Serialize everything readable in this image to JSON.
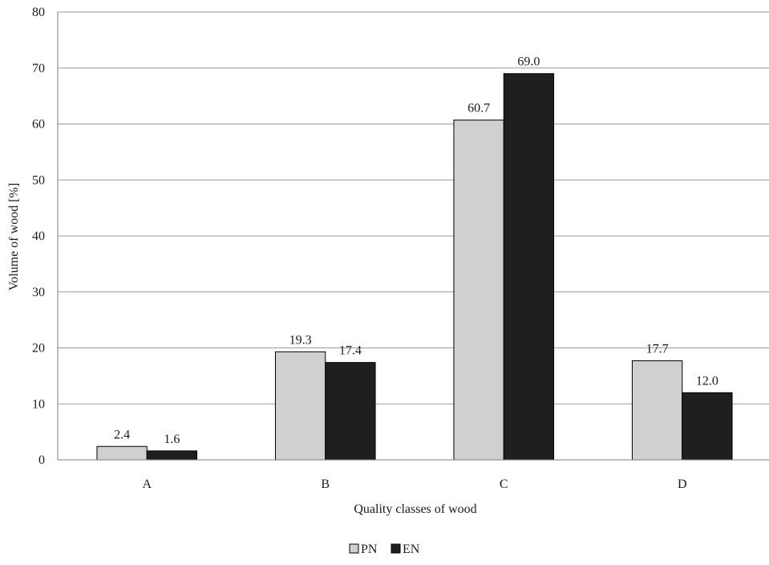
{
  "chart_data": {
    "type": "bar",
    "title": "",
    "xlabel": "Quality classes of wood",
    "ylabel": "Volume of wood [%]",
    "categories": [
      "A",
      "B",
      "C",
      "D"
    ],
    "ylim": [
      0,
      80
    ],
    "yticks": [
      0,
      10,
      20,
      30,
      40,
      50,
      60,
      70,
      80
    ],
    "grid": true,
    "legend_position": "bottom",
    "series": [
      {
        "name": "PN",
        "color": "#d0d0d0",
        "values": [
          2.4,
          19.3,
          60.7,
          17.7
        ],
        "labels": [
          "2.4",
          "19.3",
          "60.7",
          "17.7"
        ]
      },
      {
        "name": "EN",
        "color": "#1f1f1f",
        "values": [
          1.6,
          17.4,
          69.0,
          12.0
        ],
        "labels": [
          "1.6",
          "17.4",
          "69.0",
          "12.0"
        ]
      }
    ]
  }
}
